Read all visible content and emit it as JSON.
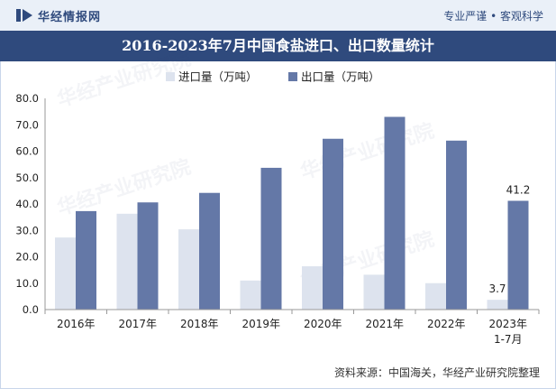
{
  "header": {
    "brand": "华经情报网",
    "tagline": "专业严谨 • 客观科学",
    "logo_icon": "huajing-logo-icon"
  },
  "footer": {
    "source": "资料来源：中国海关，华经产业研究院整理"
  },
  "colors": {
    "import": "#dde3ee",
    "export": "#6478a7",
    "title_bg": "#2f4a7d"
  },
  "chart_data": {
    "type": "bar",
    "title": "2016-2023年7月中国食盐进口、出口数量统计",
    "xlabel": "",
    "ylabel": "",
    "ylim": [
      0,
      80
    ],
    "yticks": [
      "0.0",
      "10.0",
      "20.0",
      "30.0",
      "40.0",
      "50.0",
      "60.0",
      "70.0",
      "80.0"
    ],
    "grid": false,
    "legend_position": "top",
    "categories": [
      "2016年",
      "2017年",
      "2018年",
      "2019年",
      "2020年",
      "2021年",
      "2022年",
      "2023年\n1-7月"
    ],
    "series": [
      {
        "name": "进口量（万吨）",
        "values": [
          27.3,
          36.3,
          30.4,
          11.0,
          16.4,
          13.2,
          10.0,
          3.7
        ]
      },
      {
        "name": "出口量（万吨）",
        "values": [
          37.3,
          40.6,
          44.2,
          53.7,
          64.7,
          73.0,
          64.0,
          41.2
        ]
      }
    ],
    "data_labels": [
      {
        "series": 0,
        "index": 7,
        "text": "3.7"
      },
      {
        "series": 1,
        "index": 7,
        "text": "41.2"
      }
    ]
  }
}
